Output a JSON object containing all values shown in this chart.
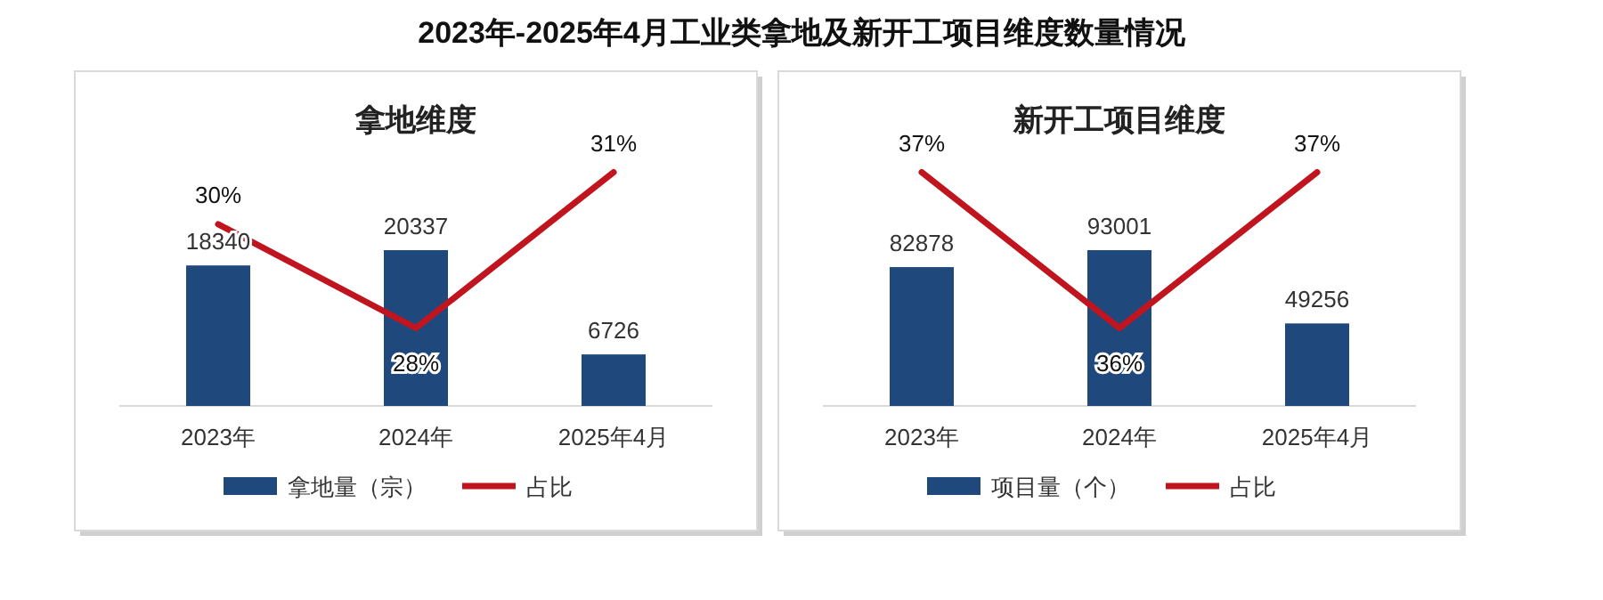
{
  "chart_data": [
    {
      "type": "other",
      "title": "2023年-2025年4月工业类拿地及新开工项目维度数量情况"
    },
    {
      "type": "bar",
      "title": "拿地维度",
      "categories": [
        "2023年",
        "2024年",
        "2025年4月"
      ],
      "tick_labels": "x",
      "legend": "bottom",
      "series": [
        {
          "name": "拿地量（宗）",
          "type": "bar",
          "color": "#1f497d",
          "values": [
            18340,
            20337,
            6726
          ],
          "value_labels": [
            "18340",
            "20337",
            "6726"
          ]
        },
        {
          "name": "占比",
          "type": "line",
          "axis": "y2",
          "color": "#c0151f",
          "values": [
            30,
            28,
            31
          ],
          "value_labels": [
            "30%",
            "28%",
            "31%"
          ]
        }
      ]
    },
    {
      "type": "bar",
      "title": "新开工项目维度",
      "categories": [
        "2023年",
        "2024年",
        "2025年4月"
      ],
      "tick_labels": "x",
      "legend": "bottom",
      "series": [
        {
          "name": "项目量（个）",
          "type": "bar",
          "color": "#1f497d",
          "values": [
            82878,
            93001,
            49256
          ],
          "value_labels": [
            "82878",
            "93001",
            "49256"
          ]
        },
        {
          "name": "占比",
          "type": "line",
          "axis": "y2",
          "color": "#c0151f",
          "values": [
            37,
            36,
            37
          ],
          "value_labels": [
            "37%",
            "36%",
            "37%"
          ]
        }
      ]
    }
  ]
}
